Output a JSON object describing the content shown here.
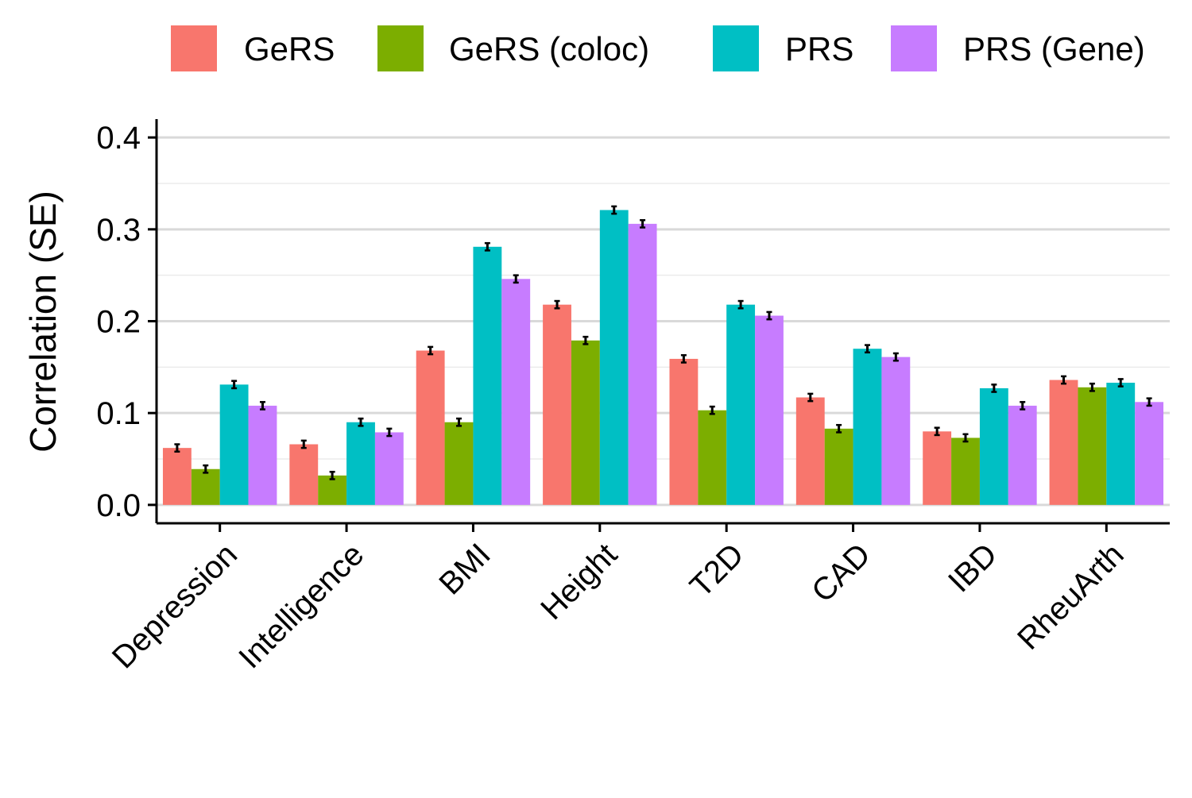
{
  "chart_data": {
    "type": "bar",
    "title": "",
    "xlabel": "",
    "ylabel": "Correlation (SE)",
    "ylim": [
      -0.02,
      0.42
    ],
    "yticks": [
      0.0,
      0.1,
      0.2,
      0.3,
      0.4
    ],
    "ytick_labels": [
      "0.0",
      "0.1",
      "0.2",
      "0.3",
      "0.4"
    ],
    "grid": true,
    "legend_position": "top",
    "categories": [
      "Depression",
      "Intelligence",
      "BMI",
      "Height",
      "T2D",
      "CAD",
      "IBD",
      "RheuArth"
    ],
    "series": [
      {
        "name": "GeRS",
        "color": "#F8766D",
        "values": [
          0.062,
          0.066,
          0.168,
          0.218,
          0.159,
          0.117,
          0.08,
          0.136
        ],
        "errors": [
          0.004,
          0.004,
          0.004,
          0.004,
          0.004,
          0.004,
          0.004,
          0.004
        ]
      },
      {
        "name": "GeRS (coloc)",
        "color": "#7CAE00",
        "values": [
          0.039,
          0.032,
          0.09,
          0.179,
          0.103,
          0.083,
          0.073,
          0.128
        ],
        "errors": [
          0.004,
          0.004,
          0.004,
          0.004,
          0.004,
          0.004,
          0.004,
          0.004
        ]
      },
      {
        "name": "PRS",
        "color": "#00BFC4",
        "values": [
          0.131,
          0.09,
          0.281,
          0.321,
          0.218,
          0.17,
          0.127,
          0.133
        ],
        "errors": [
          0.004,
          0.004,
          0.004,
          0.004,
          0.004,
          0.004,
          0.004,
          0.004
        ]
      },
      {
        "name": "PRS (Gene)",
        "color": "#C77CFF",
        "values": [
          0.108,
          0.079,
          0.246,
          0.306,
          0.206,
          0.161,
          0.108,
          0.112
        ],
        "errors": [
          0.004,
          0.004,
          0.004,
          0.004,
          0.004,
          0.004,
          0.004,
          0.004
        ]
      }
    ]
  }
}
